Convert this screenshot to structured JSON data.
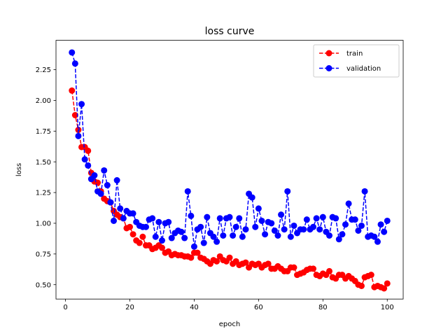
{
  "chart_data": {
    "type": "line",
    "title": "loss curve",
    "xlabel": "epoch",
    "ylabel": "loss",
    "xlim": [
      -2.95,
      104.95
    ],
    "ylim": [
      0.3832,
      2.4891
    ],
    "xticks": [
      0,
      20,
      40,
      60,
      80,
      100
    ],
    "xtick_labels": [
      "0",
      "20",
      "40",
      "60",
      "80",
      "100"
    ],
    "yticks": [
      0.5,
      0.75,
      1.0,
      1.25,
      1.5,
      1.75,
      2.0,
      2.25
    ],
    "ytick_labels": [
      "0.50",
      "0.75",
      "1.00",
      "1.25",
      "1.50",
      "1.75",
      "2.00",
      "2.25"
    ],
    "grid": false,
    "legend_position": "top-right",
    "x": [
      2,
      3,
      4,
      5,
      6,
      7,
      8,
      9,
      10,
      11,
      12,
      13,
      14,
      15,
      16,
      17,
      18,
      19,
      20,
      21,
      22,
      23,
      24,
      25,
      26,
      27,
      28,
      29,
      30,
      31,
      32,
      33,
      34,
      35,
      36,
      37,
      38,
      39,
      40,
      41,
      42,
      43,
      44,
      45,
      46,
      47,
      48,
      49,
      50,
      51,
      52,
      53,
      54,
      55,
      56,
      57,
      58,
      59,
      60,
      61,
      62,
      63,
      64,
      65,
      66,
      67,
      68,
      69,
      70,
      71,
      72,
      73,
      74,
      75,
      76,
      77,
      78,
      79,
      80,
      81,
      82,
      83,
      84,
      85,
      86,
      87,
      88,
      89,
      90,
      91,
      92,
      93,
      94,
      95,
      96,
      97,
      98,
      99,
      100
    ],
    "series": [
      {
        "name": "train",
        "color": "#ff0000",
        "line_style": "dashed",
        "marker": "circle",
        "values": [
          2.08,
          1.88,
          1.76,
          1.62,
          1.62,
          1.59,
          1.41,
          1.34,
          1.33,
          1.26,
          1.2,
          1.18,
          1.17,
          1.1,
          1.07,
          1.05,
          1.04,
          0.96,
          0.97,
          0.91,
          0.86,
          0.84,
          0.89,
          0.82,
          0.82,
          0.79,
          0.8,
          0.82,
          0.8,
          0.76,
          0.77,
          0.74,
          0.75,
          0.74,
          0.74,
          0.73,
          0.73,
          0.72,
          0.76,
          0.76,
          0.72,
          0.71,
          0.69,
          0.67,
          0.7,
          0.69,
          0.73,
          0.7,
          0.69,
          0.72,
          0.67,
          0.69,
          0.66,
          0.67,
          0.68,
          0.64,
          0.67,
          0.66,
          0.67,
          0.64,
          0.66,
          0.67,
          0.63,
          0.63,
          0.65,
          0.63,
          0.61,
          0.61,
          0.64,
          0.64,
          0.58,
          0.59,
          0.6,
          0.62,
          0.63,
          0.63,
          0.58,
          0.57,
          0.59,
          0.58,
          0.61,
          0.56,
          0.55,
          0.58,
          0.58,
          0.55,
          0.57,
          0.55,
          0.53,
          0.5,
          0.49,
          0.56,
          0.57,
          0.58,
          0.48,
          0.49,
          0.48,
          0.47,
          0.51
        ]
      },
      {
        "name": "validation",
        "color": "#0000ff",
        "line_style": "dashed",
        "marker": "circle",
        "values": [
          2.39,
          2.3,
          1.71,
          1.97,
          1.52,
          1.47,
          1.36,
          1.39,
          1.26,
          1.24,
          1.43,
          1.31,
          1.17,
          1.02,
          1.35,
          1.12,
          1.04,
          1.1,
          1.08,
          1.08,
          1.01,
          0.98,
          0.97,
          0.97,
          1.03,
          1.04,
          0.89,
          1.01,
          0.86,
          1.0,
          1.01,
          0.88,
          0.92,
          0.94,
          0.93,
          0.88,
          1.26,
          1.06,
          0.81,
          0.95,
          0.97,
          0.84,
          1.05,
          0.92,
          0.89,
          0.85,
          1.04,
          0.9,
          1.04,
          1.05,
          0.9,
          0.97,
          1.04,
          0.89,
          0.95,
          1.24,
          1.21,
          0.97,
          1.12,
          1.02,
          0.91,
          1.01,
          1.0,
          0.94,
          0.9,
          1.07,
          0.95,
          1.26,
          0.89,
          0.98,
          0.92,
          0.95,
          0.95,
          1.03,
          0.95,
          0.97,
          1.04,
          0.95,
          1.05,
          0.93,
          0.9,
          1.05,
          1.04,
          0.87,
          0.91,
          0.99,
          1.16,
          1.03,
          1.03,
          0.94,
          0.98,
          1.26,
          0.89,
          0.9,
          0.89,
          0.85,
          0.99,
          0.93,
          1.02
        ]
      }
    ]
  }
}
